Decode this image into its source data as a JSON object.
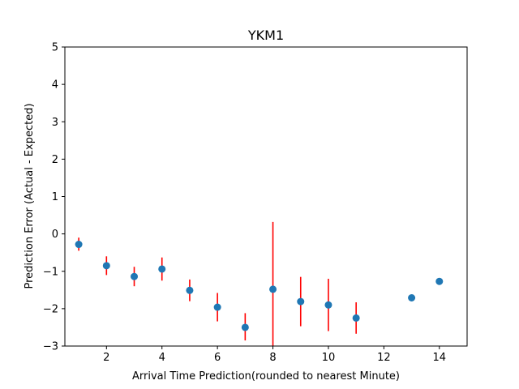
{
  "chart_data": {
    "type": "scatter",
    "title": "YKM1",
    "xlabel": "Arrival Time Prediction(rounded to nearest Minute)",
    "ylabel": "Prediction Error (Actual - Expected)",
    "xlim": [
      0.5,
      15
    ],
    "ylim": [
      -3,
      5
    ],
    "xticks": [
      2,
      4,
      6,
      8,
      10,
      12,
      14
    ],
    "yticks": [
      -3,
      -2,
      -1,
      0,
      1,
      2,
      3,
      4,
      5
    ],
    "grid": false,
    "point_color": "#1f77b4",
    "errorbar_color": "#ff0000",
    "points": [
      {
        "x": 1,
        "y": -0.28,
        "ylow": -0.45,
        "yhigh": -0.1
      },
      {
        "x": 2,
        "y": -0.85,
        "ylow": -1.1,
        "yhigh": -0.6
      },
      {
        "x": 3,
        "y": -1.14,
        "ylow": -1.4,
        "yhigh": -0.88
      },
      {
        "x": 4,
        "y": -0.94,
        "ylow": -1.25,
        "yhigh": -0.63
      },
      {
        "x": 5,
        "y": -1.51,
        "ylow": -1.8,
        "yhigh": -1.22
      },
      {
        "x": 6,
        "y": -1.96,
        "ylow": -2.34,
        "yhigh": -1.58
      },
      {
        "x": 7,
        "y": -2.5,
        "ylow": -2.85,
        "yhigh": -2.12
      },
      {
        "x": 8,
        "y": -1.48,
        "ylow": -3.3,
        "yhigh": 0.32
      },
      {
        "x": 9,
        "y": -1.81,
        "ylow": -2.47,
        "yhigh": -1.15
      },
      {
        "x": 10,
        "y": -1.9,
        "ylow": -2.6,
        "yhigh": -1.2
      },
      {
        "x": 11,
        "y": -2.25,
        "ylow": -2.67,
        "yhigh": -1.83
      },
      {
        "x": 13,
        "y": -1.71,
        "ylow": null,
        "yhigh": null
      },
      {
        "x": 14,
        "y": -1.27,
        "ylow": null,
        "yhigh": null
      }
    ]
  }
}
